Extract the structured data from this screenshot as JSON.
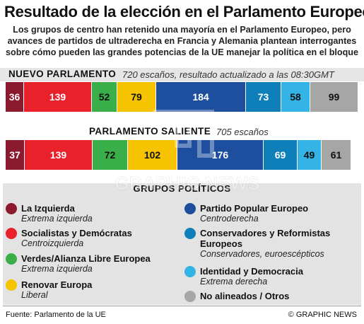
{
  "title": "Resultado de la elección en el Parlamento Europeo",
  "subtitle_lines": [
    "Los grupos de centro han retenido una mayoría en el Parlamento Europeo, pero",
    "avances de partidos de ultraderecha en Francia y Alemania plantean interrogantes",
    "sobre cómo pueden las grandes potencias de la UE manejar la política en el bloque"
  ],
  "chart_data": [
    {
      "type": "bar",
      "orientation": "stacked-horizontal",
      "label": "NUEVO PARLAMENTO",
      "note": "720 escaños, resultado actualizado a las 08:30GMT",
      "total": 720,
      "series": [
        {
          "name": "La Izquierda",
          "value": 36
        },
        {
          "name": "Socialistas y Demócratas",
          "value": 139
        },
        {
          "name": "Verdes/Alianza Libre Europea",
          "value": 52
        },
        {
          "name": "Renovar Europa",
          "value": 79
        },
        {
          "name": "Partido Popular Europeo",
          "value": 184
        },
        {
          "name": "Conservadores y Reformistas Europeos",
          "value": 73
        },
        {
          "name": "Identidad y Democracia",
          "value": 58
        },
        {
          "name": "No alineados / Otros",
          "value": 99
        }
      ]
    },
    {
      "type": "bar",
      "orientation": "stacked-horizontal",
      "label": "PARLAMENTO SALIENTE",
      "note": "705 escaños",
      "total": 705,
      "series": [
        {
          "name": "La Izquierda",
          "value": 37
        },
        {
          "name": "Socialistas y Demócratas",
          "value": 139
        },
        {
          "name": "Verdes/Alianza Libre Europea",
          "value": 72
        },
        {
          "name": "Renovar Europa",
          "value": 102
        },
        {
          "name": "Partido Popular Europeo",
          "value": 176
        },
        {
          "name": "Conservadores y Reformistas Europeos",
          "value": 69
        },
        {
          "name": "Identidad y Democracia",
          "value": 49
        },
        {
          "name": "No alineados / Otros",
          "value": 61
        }
      ]
    }
  ],
  "groups": {
    "title": "GRUPOS POLÍTICOS",
    "items": [
      {
        "name": "La Izquierda",
        "sub": "Extrema izquierda",
        "color": "#8b1a2e",
        "text_color": "#ffffff"
      },
      {
        "name": "Socialistas y Demócratas",
        "sub": "Centroizquierda",
        "color": "#e8212b",
        "text_color": "#ffffff"
      },
      {
        "name": "Verdes/Alianza Libre Europea",
        "sub": "Extrema izquierda",
        "color": "#3aae48",
        "text_color": "#111111"
      },
      {
        "name": "Renovar Europa",
        "sub": "Liberal",
        "color": "#f6c300",
        "text_color": "#111111"
      },
      {
        "name": "Partido Popular Europeo",
        "sub": "Centroderecha",
        "color": "#1d4f9e",
        "text_color": "#ffffff"
      },
      {
        "name": "Conservadores y Reformistas Europeos",
        "name_lines": [
          "Conservadores y Reformistas",
          "Europeos"
        ],
        "sub": "Conservadores, euroescépticos",
        "color": "#0f7fba",
        "text_color": "#ffffff"
      },
      {
        "name": "Identidad y Democracia",
        "sub": "Extrema derecha",
        "color": "#33b3e6",
        "text_color": "#111111"
      },
      {
        "name": "No alineados / Otros",
        "sub": "",
        "color": "#a6a6a6",
        "text_color": "#111111"
      }
    ]
  },
  "footer": {
    "source": "Fuente: Parlamento de la UE",
    "credit": "© GRAPHIC NEWS"
  },
  "watermark": "GRAPHIC NEWS"
}
